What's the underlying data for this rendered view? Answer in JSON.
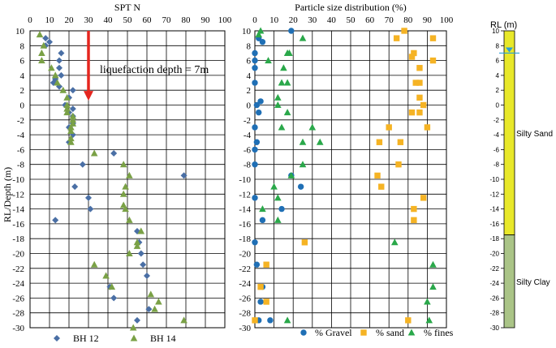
{
  "chart_data": [
    {
      "type": "scatter",
      "title": "SPT N",
      "ylabel": "RL/Depth (m)",
      "xlim": [
        0,
        100
      ],
      "ylim": [
        -30,
        10
      ],
      "xticks": [
        "0",
        "10",
        "20",
        "30",
        "40",
        "50",
        "60",
        "70",
        "80",
        "90",
        "100"
      ],
      "yticks": [
        "10",
        "8",
        "6",
        "4",
        "2",
        "0",
        "-2",
        "-4",
        "-6",
        "-8",
        "-10",
        "-12",
        "-14",
        "-16",
        "-18",
        "-20",
        "-22",
        "-24",
        "-26",
        "-28",
        "-30"
      ],
      "grid": true,
      "legend_position": "bottom",
      "annotation": {
        "text": "liquefaction depth = 7m",
        "arrow_x": 30,
        "arrow_from_y": 10,
        "arrow_to_y": 0.8
      },
      "series": [
        {
          "name": "BH 12",
          "marker": "diamond",
          "color": "#4a6fa5",
          "points": [
            [
              8,
              9
            ],
            [
              10,
              8.5
            ],
            [
              8,
              8
            ],
            [
              16,
              7
            ],
            [
              15,
              6
            ],
            [
              15,
              5
            ],
            [
              16,
              4
            ],
            [
              13,
              3.5
            ],
            [
              12,
              3
            ],
            [
              15,
              2.5
            ],
            [
              22,
              2
            ],
            [
              20,
              1
            ],
            [
              18,
              0
            ],
            [
              22,
              -0.5
            ],
            [
              20,
              -1
            ],
            [
              22,
              -1.5
            ],
            [
              22,
              -2.5
            ],
            [
              20,
              -3
            ],
            [
              22,
              -4
            ],
            [
              20,
              -5
            ],
            [
              43,
              -6.5
            ],
            [
              27,
              -8
            ],
            [
              79,
              -9.5
            ],
            [
              23,
              -11
            ],
            [
              30,
              -12.5
            ],
            [
              31,
              -14
            ],
            [
              13,
              -15.5
            ],
            [
              55,
              -17
            ],
            [
              56,
              -18.5
            ],
            [
              57,
              -20
            ],
            [
              58,
              -21.5
            ],
            [
              60,
              -23
            ],
            [
              41,
              -24.5
            ],
            [
              43,
              -26
            ],
            [
              61,
              -27.5
            ],
            [
              55,
              -29
            ]
          ]
        },
        {
          "name": "BH 14",
          "marker": "triangle",
          "color": "#7aa146",
          "points": [
            [
              5,
              9.5
            ],
            [
              7,
              8
            ],
            [
              6,
              7
            ],
            [
              6,
              6
            ],
            [
              11,
              5
            ],
            [
              13,
              4
            ],
            [
              14,
              3
            ],
            [
              17,
              2
            ],
            [
              19,
              1
            ],
            [
              19,
              0
            ],
            [
              19,
              -0.5
            ],
            [
              19,
              -1
            ],
            [
              22,
              -1.5
            ],
            [
              22,
              -2
            ],
            [
              22,
              -2.5
            ],
            [
              21,
              -3
            ],
            [
              21,
              -3.5
            ],
            [
              21,
              -4.5
            ],
            [
              21,
              -5
            ],
            [
              33,
              -6.5
            ],
            [
              48,
              -8
            ],
            [
              51,
              -9.5
            ],
            [
              49,
              -11
            ],
            [
              48,
              -12
            ],
            [
              48,
              -13.5
            ],
            [
              49,
              -14
            ],
            [
              51,
              -15.5
            ],
            [
              57,
              -17
            ],
            [
              55,
              -18.5
            ],
            [
              55,
              -19
            ],
            [
              51,
              -20
            ],
            [
              33,
              -21.5
            ],
            [
              39,
              -23
            ],
            [
              42,
              -24.5
            ],
            [
              62,
              -25.5
            ],
            [
              66,
              -26.5
            ],
            [
              64,
              -27.5
            ],
            [
              79,
              -29
            ],
            [
              53,
              -30
            ]
          ]
        }
      ]
    },
    {
      "type": "scatter",
      "title": "Particle size distribution (%)",
      "xlim": [
        0,
        100
      ],
      "ylim": [
        -30,
        10
      ],
      "xticks": [
        "0",
        "10",
        "20",
        "30",
        "40",
        "50",
        "60",
        "70",
        "80",
        "90",
        "100"
      ],
      "yticks": [
        "10",
        "8",
        "6",
        "4",
        "2",
        "0",
        "-2",
        "-4",
        "-6",
        "-8",
        "-10",
        "-12",
        "-14",
        "-16",
        "-18",
        "-20",
        "-22",
        "-24",
        "-26",
        "-28",
        "-30"
      ],
      "grid": true,
      "legend_position": "bottom",
      "series": [
        {
          "name": "% Gravel",
          "marker": "circle",
          "color": "#1f6fb5",
          "points": [
            [
              19,
              10
            ],
            [
              2,
              9
            ],
            [
              4,
              8.5
            ],
            [
              0,
              7
            ],
            [
              0,
              6
            ],
            [
              0,
              5
            ],
            [
              0,
              3
            ],
            [
              3,
              0.5
            ],
            [
              1,
              0
            ],
            [
              2,
              -1
            ],
            [
              0,
              -3
            ],
            [
              1,
              -5
            ],
            [
              0,
              -6
            ],
            [
              0,
              -8
            ],
            [
              19,
              -9.5
            ],
            [
              24,
              -11
            ],
            [
              0,
              -12.5
            ],
            [
              14,
              -14
            ],
            [
              4,
              -15.5
            ],
            [
              0,
              -18.5
            ],
            [
              1,
              -21.5
            ],
            [
              4,
              -24.5
            ],
            [
              3,
              -26.5
            ],
            [
              8,
              -29
            ],
            [
              2,
              -29
            ]
          ]
        },
        {
          "name": "% sand",
          "marker": "square",
          "color": "#f5b324",
          "points": [
            [
              78,
              10
            ],
            [
              74,
              9
            ],
            [
              93,
              9
            ],
            [
              83,
              7
            ],
            [
              82,
              6.5
            ],
            [
              93,
              6
            ],
            [
              86,
              5
            ],
            [
              84,
              3
            ],
            [
              86,
              3
            ],
            [
              86,
              1
            ],
            [
              88,
              0
            ],
            [
              82,
              -1
            ],
            [
              86,
              -1
            ],
            [
              70,
              -3
            ],
            [
              90,
              -3
            ],
            [
              65,
              -5
            ],
            [
              76,
              -5
            ],
            [
              75,
              -8
            ],
            [
              64,
              -9.5
            ],
            [
              66,
              -11
            ],
            [
              88,
              -12.5
            ],
            [
              83,
              -14
            ],
            [
              83,
              -15.5
            ],
            [
              26,
              -18.5
            ],
            [
              6,
              -21.5
            ],
            [
              3,
              -24.5
            ],
            [
              6,
              -26.5
            ],
            [
              80,
              -29
            ],
            [
              0,
              -29
            ]
          ]
        },
        {
          "name": "% fines",
          "marker": "triangle",
          "color": "#2aa84a",
          "points": [
            [
              3,
              10
            ],
            [
              25,
              9
            ],
            [
              2,
              9.5
            ],
            [
              17,
              7
            ],
            [
              18,
              7
            ],
            [
              7,
              6
            ],
            [
              15,
              5
            ],
            [
              14,
              3
            ],
            [
              17,
              3
            ],
            [
              12,
              1
            ],
            [
              12,
              0
            ],
            [
              17,
              -1
            ],
            [
              14,
              -3
            ],
            [
              30,
              -3
            ],
            [
              25,
              -5
            ],
            [
              34,
              -5
            ],
            [
              25,
              -8
            ],
            [
              19,
              -9.5
            ],
            [
              10,
              -11
            ],
            [
              12,
              -12.5
            ],
            [
              4,
              -14
            ],
            [
              12,
              -15.5
            ],
            [
              73,
              -18.5
            ],
            [
              93,
              -21.5
            ],
            [
              93,
              -24.5
            ],
            [
              90,
              -26.5
            ],
            [
              17,
              -29
            ],
            [
              91,
              -29
            ]
          ]
        }
      ]
    },
    {
      "type": "strip-log",
      "title": "RL (m)",
      "ylim": [
        -30,
        10
      ],
      "yticks": [
        "10",
        "8",
        "6",
        "4",
        "2",
        "0",
        "-2",
        "-4",
        "-6",
        "-8",
        "-10",
        "-12",
        "-14",
        "-16",
        "-18",
        "-20",
        "-22",
        "-24",
        "-26",
        "-28",
        "-30"
      ],
      "water_level": 7,
      "layers": [
        {
          "name": "Silty Sand",
          "top": 10,
          "bottom": -17.5,
          "color": "#e8e82a"
        },
        {
          "name": "Silty Clay",
          "top": -17.5,
          "bottom": -30,
          "color": "#aac487"
        }
      ]
    }
  ]
}
